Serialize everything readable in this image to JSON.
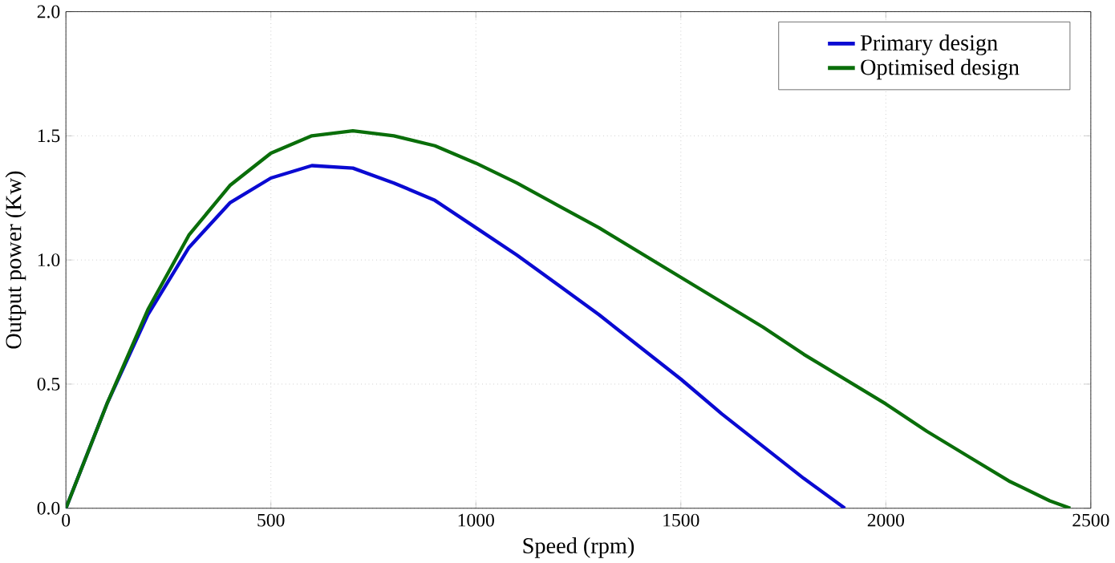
{
  "chart_data": {
    "type": "line",
    "xlabel": "Speed (rpm)",
    "ylabel": "Output power (Kw)",
    "xlim": [
      0,
      2500
    ],
    "ylim": [
      0,
      2
    ],
    "xticks": [
      0,
      500,
      1000,
      1500,
      2000,
      2500
    ],
    "yticks": [
      {
        "value": 0,
        "label": "0.0"
      },
      {
        "value": 0.5,
        "label": "0.5"
      },
      {
        "value": 1,
        "label": "1.0"
      },
      {
        "value": 1.5,
        "label": "1.5"
      },
      {
        "value": 2,
        "label": "2.0"
      }
    ],
    "grid": true,
    "legend": "top right",
    "line_style": "solid",
    "marker": "none",
    "x": [
      0,
      100,
      200,
      300,
      400,
      500,
      600,
      700,
      800,
      900,
      1000,
      1100,
      1200,
      1300,
      1400,
      1500,
      1600,
      1700,
      1800,
      1900
    ],
    "series": [
      {
        "name": "Primary design",
        "color": "#0a0ad2",
        "values": [
          0,
          0.42,
          0.78,
          1.05,
          1.23,
          1.33,
          1.38,
          1.37,
          1.31,
          1.24,
          1.13,
          1.02,
          0.9,
          0.78,
          0.65,
          0.52,
          0.38,
          0.25,
          0.12,
          0
        ]
      },
      {
        "name": "Optimised design",
        "color": "#0a6e0a",
        "x": [
          0,
          100,
          200,
          300,
          400,
          500,
          600,
          700,
          800,
          900,
          1000,
          1100,
          1200,
          1300,
          1400,
          1500,
          1600,
          1700,
          1800,
          1900,
          2000,
          2100,
          2200,
          2300,
          2400,
          2450
        ],
        "values": [
          0,
          0.42,
          0.8,
          1.1,
          1.3,
          1.43,
          1.5,
          1.52,
          1.5,
          1.46,
          1.39,
          1.31,
          1.22,
          1.13,
          1.03,
          0.93,
          0.83,
          0.73,
          0.62,
          0.52,
          0.42,
          0.31,
          0.21,
          0.11,
          0.03,
          0
        ]
      }
    ]
  }
}
